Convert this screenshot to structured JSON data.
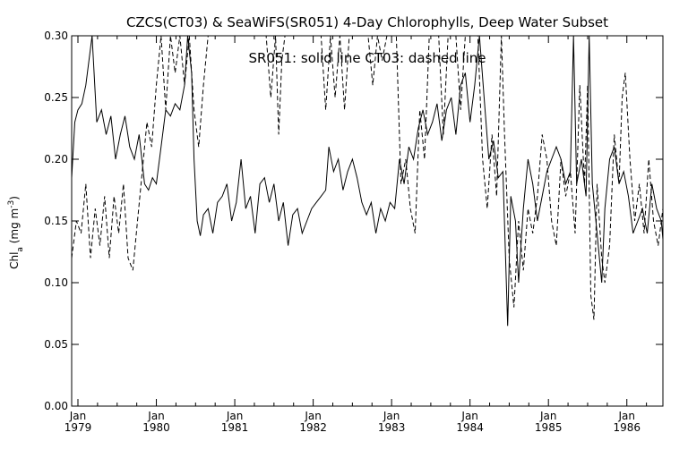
{
  "chart_data": {
    "type": "line",
    "title": "CZCS(CT03) & SeaWiFS(SR051) 4-Day Chlorophylls, Deep Water Subset",
    "annotation": "SR051: solid line   CT03: dashed line",
    "ylabel": {
      "base": "Chl",
      "sub": "a",
      "units_pre": " (mg m",
      "units_sup": "-3",
      "units_post": ")"
    },
    "ylim": [
      0.0,
      0.3
    ],
    "xlim": [
      1978.92,
      1986.46
    ],
    "yticks": [
      {
        "v": 0.0,
        "label": "0.00"
      },
      {
        "v": 0.05,
        "label": "0.05"
      },
      {
        "v": 0.1,
        "label": "0.10"
      },
      {
        "v": 0.15,
        "label": "0.15"
      },
      {
        "v": 0.2,
        "label": "0.20"
      },
      {
        "v": 0.25,
        "label": "0.25"
      },
      {
        "v": 0.3,
        "label": "0.30"
      }
    ],
    "xticks": [
      {
        "v": 1979.0,
        "month": "Jan",
        "year": "1979"
      },
      {
        "v": 1980.0,
        "month": "Jan",
        "year": "1980"
      },
      {
        "v": 1981.0,
        "month": "Jan",
        "year": "1981"
      },
      {
        "v": 1982.0,
        "month": "Jan",
        "year": "1982"
      },
      {
        "v": 1983.0,
        "month": "Jan",
        "year": "1983"
      },
      {
        "v": 1984.0,
        "month": "Jan",
        "year": "1984"
      },
      {
        "v": 1985.0,
        "month": "Jan",
        "year": "1985"
      },
      {
        "v": 1986.0,
        "month": "Jan",
        "year": "1986"
      }
    ],
    "series": [
      {
        "style": "solid",
        "points": [
          [
            1978.92,
            0.185
          ],
          [
            1978.96,
            0.23
          ],
          [
            1979.0,
            0.24
          ],
          [
            1979.05,
            0.245
          ],
          [
            1979.1,
            0.26
          ],
          [
            1979.14,
            0.28
          ],
          [
            1979.18,
            0.3
          ],
          [
            1979.24,
            0.23
          ],
          [
            1979.3,
            0.24
          ],
          [
            1979.36,
            0.22
          ],
          [
            1979.42,
            0.235
          ],
          [
            1979.48,
            0.2
          ],
          [
            1979.54,
            0.22
          ],
          [
            1979.6,
            0.235
          ],
          [
            1979.66,
            0.21
          ],
          [
            1979.72,
            0.2
          ],
          [
            1979.78,
            0.22
          ],
          [
            1979.85,
            0.18
          ],
          [
            1979.9,
            0.175
          ],
          [
            1979.95,
            0.185
          ],
          [
            1980.0,
            0.18
          ],
          [
            1980.06,
            0.21
          ],
          [
            1980.12,
            0.24
          ],
          [
            1980.18,
            0.235
          ],
          [
            1980.24,
            0.245
          ],
          [
            1980.3,
            0.24
          ],
          [
            1980.36,
            0.26
          ],
          [
            1980.4,
            0.3
          ],
          [
            1980.45,
            0.27
          ],
          [
            1980.48,
            0.2
          ],
          [
            1980.52,
            0.15
          ],
          [
            1980.56,
            0.138
          ],
          [
            1980.6,
            0.155
          ],
          [
            1980.66,
            0.16
          ],
          [
            1980.72,
            0.14
          ],
          [
            1980.78,
            0.165
          ],
          [
            1980.84,
            0.17
          ],
          [
            1980.9,
            0.18
          ],
          [
            1980.96,
            0.15
          ],
          [
            1981.02,
            0.165
          ],
          [
            1981.08,
            0.2
          ],
          [
            1981.14,
            0.16
          ],
          [
            1981.2,
            0.17
          ],
          [
            1981.26,
            0.14
          ],
          [
            1981.32,
            0.18
          ],
          [
            1981.38,
            0.185
          ],
          [
            1981.44,
            0.165
          ],
          [
            1981.5,
            0.18
          ],
          [
            1981.56,
            0.15
          ],
          [
            1981.62,
            0.165
          ],
          [
            1981.68,
            0.13
          ],
          [
            1981.74,
            0.155
          ],
          [
            1981.8,
            0.16
          ],
          [
            1981.86,
            0.14
          ],
          [
            1981.92,
            0.15
          ],
          [
            1981.98,
            0.16
          ],
          [
            1982.04,
            0.165
          ],
          [
            1982.1,
            0.17
          ],
          [
            1982.16,
            0.175
          ],
          [
            1982.2,
            0.21
          ],
          [
            1982.26,
            0.19
          ],
          [
            1982.32,
            0.2
          ],
          [
            1982.38,
            0.175
          ],
          [
            1982.44,
            0.19
          ],
          [
            1982.5,
            0.2
          ],
          [
            1982.56,
            0.185
          ],
          [
            1982.62,
            0.165
          ],
          [
            1982.68,
            0.155
          ],
          [
            1982.74,
            0.165
          ],
          [
            1982.8,
            0.14
          ],
          [
            1982.86,
            0.16
          ],
          [
            1982.92,
            0.15
          ],
          [
            1982.98,
            0.165
          ],
          [
            1983.04,
            0.16
          ],
          [
            1983.1,
            0.2
          ],
          [
            1983.16,
            0.18
          ],
          [
            1983.22,
            0.21
          ],
          [
            1983.28,
            0.2
          ],
          [
            1983.34,
            0.225
          ],
          [
            1983.4,
            0.24
          ],
          [
            1983.46,
            0.22
          ],
          [
            1983.52,
            0.23
          ],
          [
            1983.58,
            0.245
          ],
          [
            1983.64,
            0.215
          ],
          [
            1983.7,
            0.24
          ],
          [
            1983.76,
            0.25
          ],
          [
            1983.82,
            0.22
          ],
          [
            1983.88,
            0.26
          ],
          [
            1983.94,
            0.27
          ],
          [
            1984.0,
            0.23
          ],
          [
            1984.06,
            0.26
          ],
          [
            1984.12,
            0.3
          ],
          [
            1984.18,
            0.25
          ],
          [
            1984.24,
            0.2
          ],
          [
            1984.3,
            0.215
          ],
          [
            1984.36,
            0.185
          ],
          [
            1984.42,
            0.19
          ],
          [
            1984.48,
            0.065
          ],
          [
            1984.52,
            0.17
          ],
          [
            1984.58,
            0.15
          ],
          [
            1984.62,
            0.1
          ],
          [
            1984.68,
            0.16
          ],
          [
            1984.74,
            0.2
          ],
          [
            1984.8,
            0.18
          ],
          [
            1984.86,
            0.15
          ],
          [
            1984.92,
            0.17
          ],
          [
            1984.98,
            0.19
          ],
          [
            1985.04,
            0.2
          ],
          [
            1985.1,
            0.21
          ],
          [
            1985.16,
            0.2
          ],
          [
            1985.22,
            0.18
          ],
          [
            1985.28,
            0.19
          ],
          [
            1985.32,
            0.3
          ],
          [
            1985.36,
            0.18
          ],
          [
            1985.42,
            0.2
          ],
          [
            1985.48,
            0.17
          ],
          [
            1985.52,
            0.3
          ],
          [
            1985.56,
            0.18
          ],
          [
            1985.62,
            0.14
          ],
          [
            1985.68,
            0.1
          ],
          [
            1985.72,
            0.16
          ],
          [
            1985.78,
            0.2
          ],
          [
            1985.84,
            0.21
          ],
          [
            1985.9,
            0.18
          ],
          [
            1985.96,
            0.19
          ],
          [
            1986.02,
            0.17
          ],
          [
            1986.08,
            0.14
          ],
          [
            1986.14,
            0.15
          ],
          [
            1986.2,
            0.16
          ],
          [
            1986.26,
            0.14
          ],
          [
            1986.32,
            0.18
          ],
          [
            1986.38,
            0.16
          ],
          [
            1986.44,
            0.15
          ],
          [
            1986.46,
            0.135
          ]
        ]
      },
      {
        "style": "dashed",
        "points": [
          [
            1978.92,
            0.12
          ],
          [
            1978.98,
            0.15
          ],
          [
            1979.04,
            0.14
          ],
          [
            1979.1,
            0.18
          ],
          [
            1979.16,
            0.12
          ],
          [
            1979.22,
            0.16
          ],
          [
            1979.28,
            0.13
          ],
          [
            1979.34,
            0.17
          ],
          [
            1979.4,
            0.12
          ],
          [
            1979.46,
            0.17
          ],
          [
            1979.52,
            0.14
          ],
          [
            1979.58,
            0.18
          ],
          [
            1979.64,
            0.12
          ],
          [
            1979.7,
            0.11
          ],
          [
            1979.76,
            0.15
          ],
          [
            1979.82,
            0.19
          ],
          [
            1979.88,
            0.23
          ],
          [
            1979.94,
            0.21
          ],
          [
            1980.0,
            0.26
          ],
          [
            1980.06,
            0.3
          ],
          [
            1980.12,
            0.24
          ],
          [
            1980.18,
            0.3
          ],
          [
            1980.24,
            0.27
          ],
          [
            1980.3,
            0.3
          ],
          [
            1980.36,
            0.26
          ],
          [
            1980.42,
            0.3
          ],
          [
            1980.48,
            0.24
          ],
          [
            1980.54,
            0.21
          ],
          [
            1980.6,
            0.26
          ],
          [
            1980.66,
            0.3
          ],
          [
            1980.72,
            0.3
          ],
          [
            1981.4,
            0.3
          ],
          [
            1981.46,
            0.25
          ],
          [
            1981.52,
            0.3
          ],
          [
            1981.56,
            0.22
          ],
          [
            1981.6,
            0.28
          ],
          [
            1981.64,
            0.3
          ],
          [
            1982.1,
            0.3
          ],
          [
            1982.16,
            0.24
          ],
          [
            1982.22,
            0.3
          ],
          [
            1982.28,
            0.25
          ],
          [
            1982.34,
            0.3
          ],
          [
            1982.4,
            0.24
          ],
          [
            1982.46,
            0.3
          ],
          [
            1982.7,
            0.3
          ],
          [
            1982.76,
            0.26
          ],
          [
            1982.82,
            0.3
          ],
          [
            1982.88,
            0.28
          ],
          [
            1982.94,
            0.3
          ],
          [
            1983.06,
            0.3
          ],
          [
            1983.12,
            0.18
          ],
          [
            1983.18,
            0.2
          ],
          [
            1983.24,
            0.16
          ],
          [
            1983.3,
            0.14
          ],
          [
            1983.36,
            0.24
          ],
          [
            1983.42,
            0.2
          ],
          [
            1983.48,
            0.3
          ],
          [
            1983.6,
            0.3
          ],
          [
            1983.66,
            0.22
          ],
          [
            1983.72,
            0.3
          ],
          [
            1983.82,
            0.3
          ],
          [
            1983.88,
            0.24
          ],
          [
            1983.94,
            0.3
          ],
          [
            1984.1,
            0.3
          ],
          [
            1984.16,
            0.2
          ],
          [
            1984.22,
            0.16
          ],
          [
            1984.28,
            0.22
          ],
          [
            1984.34,
            0.17
          ],
          [
            1984.4,
            0.3
          ],
          [
            1984.44,
            0.22
          ],
          [
            1984.5,
            0.12
          ],
          [
            1984.56,
            0.08
          ],
          [
            1984.62,
            0.15
          ],
          [
            1984.68,
            0.11
          ],
          [
            1984.74,
            0.16
          ],
          [
            1984.8,
            0.14
          ],
          [
            1984.86,
            0.17
          ],
          [
            1984.92,
            0.22
          ],
          [
            1984.98,
            0.2
          ],
          [
            1985.04,
            0.15
          ],
          [
            1985.1,
            0.13
          ],
          [
            1985.16,
            0.2
          ],
          [
            1985.22,
            0.17
          ],
          [
            1985.28,
            0.19
          ],
          [
            1985.34,
            0.14
          ],
          [
            1985.4,
            0.26
          ],
          [
            1985.46,
            0.18
          ],
          [
            1985.5,
            0.26
          ],
          [
            1985.54,
            0.09
          ],
          [
            1985.58,
            0.07
          ],
          [
            1985.62,
            0.18
          ],
          [
            1985.68,
            0.12
          ],
          [
            1985.72,
            0.1
          ],
          [
            1985.78,
            0.13
          ],
          [
            1985.84,
            0.22
          ],
          [
            1985.9,
            0.18
          ],
          [
            1985.94,
            0.25
          ],
          [
            1985.98,
            0.27
          ],
          [
            1986.04,
            0.2
          ],
          [
            1986.1,
            0.15
          ],
          [
            1986.16,
            0.18
          ],
          [
            1986.22,
            0.14
          ],
          [
            1986.28,
            0.2
          ],
          [
            1986.34,
            0.15
          ],
          [
            1986.4,
            0.13
          ],
          [
            1986.46,
            0.16
          ]
        ]
      }
    ]
  }
}
